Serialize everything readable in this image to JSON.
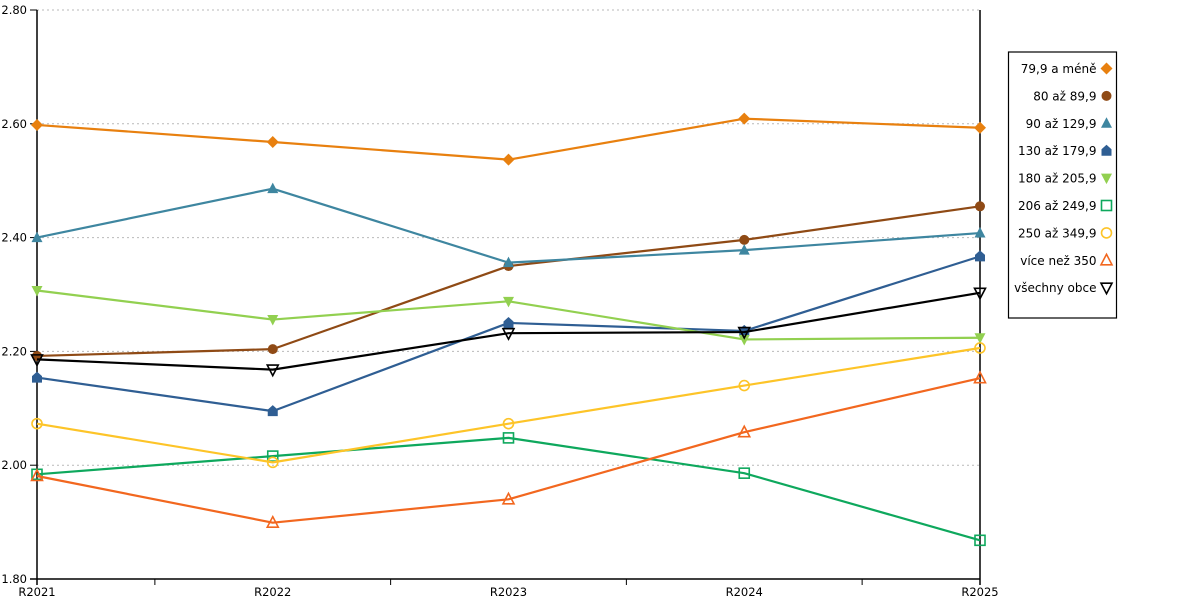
{
  "chart_data": {
    "type": "line",
    "title": "",
    "xlabel": "",
    "ylabel": "",
    "categories": [
      "R2021",
      "R2022",
      "R2023",
      "R2024",
      "R2025"
    ],
    "ytick_labels": [
      "2.80",
      "2.60",
      "2.40",
      "2.20",
      "2.00",
      "1.80"
    ],
    "ylim": [
      1.8,
      2.8
    ],
    "ytick_interval": 0.2,
    "grid": "horizontal-dashed",
    "gridline_color": "#b9b9b9",
    "axis_color": "#000000",
    "legend_position": "right",
    "legend_border_color": "#000000",
    "legend_background": "#ffffff",
    "series": [
      {
        "name": "79,9 a méně",
        "color": "#E8800F",
        "marker": "diamond",
        "fill": "filled",
        "values": [
          2.598,
          2.568,
          2.537,
          2.609,
          2.593
        ]
      },
      {
        "name": "80 až 89,9",
        "color": "#8F4A15",
        "marker": "circle",
        "fill": "filled",
        "values": [
          2.192,
          2.204,
          2.35,
          2.396,
          2.455
        ]
      },
      {
        "name": "90 až 129,9",
        "color": "#3E86A0",
        "marker": "triangle-up",
        "fill": "filled",
        "values": [
          2.4,
          2.486,
          2.356,
          2.378,
          2.408
        ]
      },
      {
        "name": "130 až 179,9",
        "color": "#2F5E93",
        "marker": "pentagon",
        "fill": "filled",
        "values": [
          2.154,
          2.095,
          2.25,
          2.236,
          2.367
        ]
      },
      {
        "name": "180 až 205,9",
        "color": "#92D050",
        "marker": "triangle-down",
        "fill": "filled",
        "values": [
          2.307,
          2.256,
          2.288,
          2.221,
          2.224
        ]
      },
      {
        "name": "206 až 249,9",
        "color": "#0EA85D",
        "marker": "square",
        "fill": "open",
        "values": [
          1.984,
          2.016,
          2.048,
          1.986,
          1.868
        ]
      },
      {
        "name": "250 až 349,9",
        "color": "#FDC428",
        "marker": "circle",
        "fill": "open",
        "values": [
          2.073,
          2.005,
          2.073,
          2.14,
          2.206
        ]
      },
      {
        "name": "více než 350",
        "color": "#F2671F",
        "marker": "triangle-up",
        "fill": "open",
        "values": [
          1.981,
          1.899,
          1.94,
          2.058,
          2.153
        ]
      },
      {
        "name": "všechny obce",
        "color": "#000000",
        "marker": "triangle-down",
        "fill": "open",
        "values": [
          2.186,
          2.168,
          2.232,
          2.234,
          2.303
        ]
      }
    ]
  }
}
